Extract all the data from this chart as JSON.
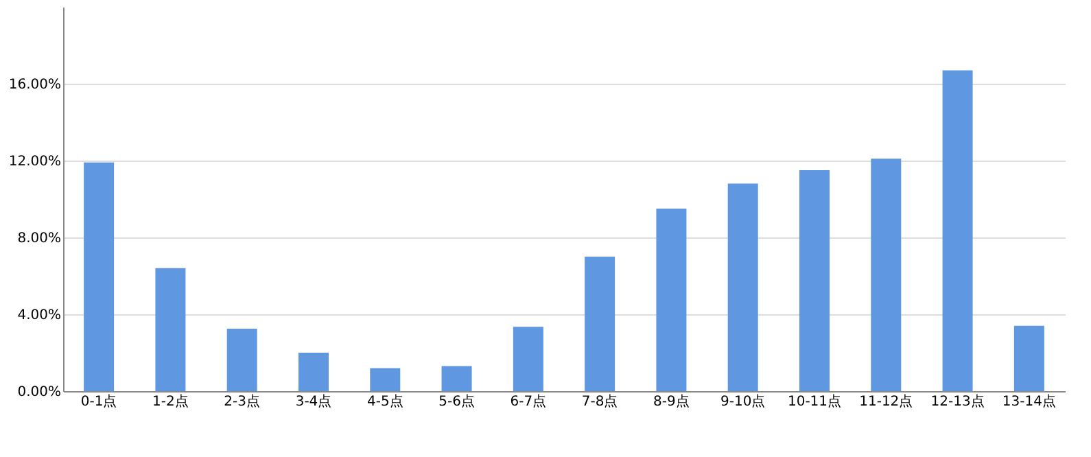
{
  "chart_data": {
    "type": "bar",
    "categories": [
      "0-1点",
      "1-2点",
      "2-3点",
      "3-4点",
      "4-5点",
      "5-6点",
      "6-7点",
      "7-8点",
      "8-9点",
      "9-10点",
      "10-11点",
      "11-12点",
      "12-13点",
      "13-14点"
    ],
    "values": [
      11.9,
      6.4,
      3.25,
      2.0,
      1.2,
      1.3,
      3.35,
      7.0,
      9.5,
      10.8,
      11.5,
      12.1,
      16.7,
      3.4
    ],
    "color": "#5f98e0",
    "ylim": [
      0,
      20
    ],
    "yticks": [
      {
        "value": 0,
        "label": "0.00%"
      },
      {
        "value": 4,
        "label": "4.00%"
      },
      {
        "value": 8,
        "label": "8.00%"
      },
      {
        "value": 12,
        "label": "12.00%"
      },
      {
        "value": 16,
        "label": "16.00%"
      }
    ],
    "grid": "y"
  }
}
